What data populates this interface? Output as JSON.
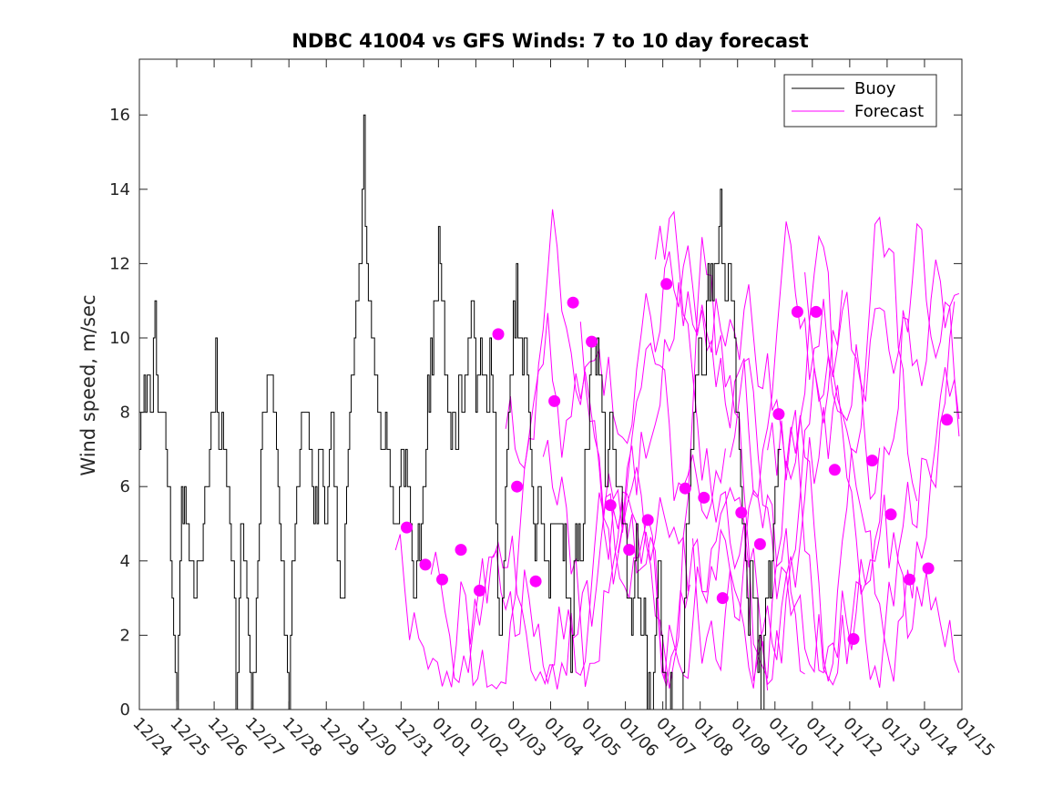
{
  "chart_data": {
    "type": "line",
    "title": "NDBC 41004 vs GFS Winds: 7 to 10 day forecast",
    "xlabel": "",
    "ylabel": "Wind speed, m/sec",
    "x_tick_labels": [
      "12/24",
      "12/25",
      "12/26",
      "12/27",
      "12/28",
      "12/29",
      "12/30",
      "12/31",
      "01/01",
      "01/02",
      "01/03",
      "01/04",
      "01/05",
      "01/06",
      "01/07",
      "01/08",
      "01/09",
      "01/10",
      "01/11",
      "01/12",
      "01/13",
      "01/14",
      "01/15"
    ],
    "xlim_days": [
      0,
      22
    ],
    "ylim": [
      0,
      17.5
    ],
    "y_ticks": [
      0,
      2,
      4,
      6,
      8,
      10,
      12,
      14,
      16
    ],
    "legend": [
      "Buoy",
      "Forecast"
    ],
    "legend_position": "top-right",
    "colors": {
      "buoy": "#000000",
      "forecast": "#ff00ff",
      "axis": "#262626"
    },
    "buoy_keypoints": [
      [
        0.0,
        7
      ],
      [
        0.1,
        8
      ],
      [
        0.2,
        9
      ],
      [
        0.35,
        9
      ],
      [
        0.42,
        10
      ],
      [
        0.5,
        8
      ],
      [
        0.65,
        8
      ],
      [
        0.7,
        7
      ],
      [
        0.8,
        5
      ],
      [
        0.9,
        3
      ],
      [
        0.95,
        1
      ],
      [
        1.0,
        0
      ],
      [
        1.05,
        3
      ],
      [
        1.1,
        5
      ],
      [
        1.2,
        6
      ],
      [
        1.3,
        5
      ],
      [
        1.4,
        4
      ],
      [
        1.5,
        3
      ],
      [
        1.6,
        4
      ],
      [
        1.7,
        5
      ],
      [
        1.8,
        6
      ],
      [
        1.95,
        8
      ],
      [
        2.05,
        9
      ],
      [
        2.15,
        7
      ],
      [
        2.3,
        7
      ],
      [
        2.4,
        6
      ],
      [
        2.5,
        4
      ],
      [
        2.55,
        2
      ],
      [
        2.6,
        0
      ],
      [
        2.7,
        4
      ],
      [
        2.75,
        5
      ],
      [
        2.85,
        3
      ],
      [
        2.95,
        1
      ],
      [
        3.0,
        0
      ],
      [
        3.1,
        2
      ],
      [
        3.2,
        5
      ],
      [
        3.3,
        8
      ],
      [
        3.4,
        9
      ],
      [
        3.55,
        9
      ],
      [
        3.65,
        7
      ],
      [
        3.8,
        4
      ],
      [
        3.9,
        2
      ],
      [
        4.0,
        0
      ],
      [
        4.05,
        3
      ],
      [
        4.15,
        5
      ],
      [
        4.2,
        6
      ],
      [
        4.3,
        7
      ],
      [
        4.4,
        8
      ],
      [
        4.5,
        8
      ],
      [
        4.6,
        6
      ],
      [
        4.7,
        5
      ],
      [
        4.8,
        7
      ],
      [
        4.9,
        6
      ],
      [
        5.0,
        5
      ],
      [
        5.05,
        6
      ],
      [
        5.15,
        8
      ],
      [
        5.2,
        7
      ],
      [
        5.3,
        4
      ],
      [
        5.4,
        3
      ],
      [
        5.45,
        2
      ],
      [
        5.5,
        5
      ],
      [
        5.6,
        8
      ],
      [
        5.7,
        10
      ],
      [
        5.8,
        11
      ],
      [
        5.9,
        12
      ],
      [
        5.95,
        13
      ],
      [
        6.0,
        16
      ],
      [
        6.05,
        12
      ],
      [
        6.1,
        12
      ],
      [
        6.15,
        11
      ],
      [
        6.25,
        10
      ],
      [
        6.35,
        9
      ],
      [
        6.45,
        7
      ],
      [
        6.55,
        8
      ],
      [
        6.65,
        7
      ],
      [
        6.75,
        6
      ],
      [
        6.85,
        5
      ],
      [
        6.95,
        6
      ],
      [
        7.05,
        7
      ],
      [
        7.15,
        6
      ],
      [
        7.25,
        5
      ],
      [
        7.3,
        4
      ],
      [
        7.4,
        3
      ],
      [
        7.5,
        5
      ],
      [
        7.6,
        6
      ],
      [
        7.7,
        8
      ],
      [
        7.8,
        9
      ],
      [
        7.9,
        11
      ],
      [
        8.0,
        12
      ],
      [
        8.05,
        13
      ],
      [
        8.1,
        11
      ],
      [
        8.2,
        9
      ],
      [
        8.3,
        8
      ],
      [
        8.4,
        7
      ],
      [
        8.5,
        8
      ],
      [
        8.6,
        9
      ],
      [
        8.7,
        8
      ],
      [
        8.8,
        10
      ],
      [
        8.9,
        11
      ],
      [
        9.0,
        9
      ],
      [
        9.1,
        10
      ],
      [
        9.2,
        9
      ],
      [
        9.3,
        8
      ],
      [
        9.4,
        10
      ],
      [
        9.5,
        7
      ],
      [
        9.6,
        2
      ],
      [
        9.65,
        1
      ],
      [
        9.7,
        3
      ],
      [
        9.8,
        6
      ],
      [
        9.9,
        8
      ],
      [
        10.0,
        10
      ],
      [
        10.1,
        11
      ],
      [
        10.2,
        9
      ],
      [
        10.3,
        10
      ],
      [
        10.4,
        8
      ],
      [
        10.5,
        6
      ],
      [
        10.6,
        4
      ],
      [
        10.7,
        6
      ],
      [
        10.8,
        5
      ],
      [
        10.9,
        3
      ],
      [
        11.0,
        4
      ],
      [
        11.1,
        5
      ],
      [
        11.2,
        6
      ],
      [
        11.3,
        5
      ],
      [
        11.4,
        4
      ],
      [
        11.5,
        2
      ],
      [
        11.55,
        1
      ],
      [
        11.6,
        3
      ],
      [
        11.7,
        5
      ],
      [
        11.8,
        4
      ],
      [
        11.9,
        6
      ],
      [
        12.0,
        8
      ],
      [
        12.1,
        10
      ],
      [
        12.2,
        9
      ],
      [
        12.3,
        10
      ],
      [
        12.4,
        8
      ],
      [
        12.5,
        6
      ],
      [
        12.55,
        7
      ],
      [
        12.6,
        8
      ],
      [
        12.7,
        7
      ],
      [
        12.8,
        6
      ],
      [
        12.9,
        5
      ],
      [
        13.0,
        4
      ],
      [
        13.1,
        3
      ],
      [
        13.15,
        2
      ],
      [
        13.2,
        3
      ],
      [
        13.3,
        4
      ],
      [
        13.4,
        3
      ],
      [
        13.45,
        2
      ],
      [
        13.5,
        4
      ],
      [
        13.55,
        2
      ],
      [
        13.6,
        0
      ],
      [
        13.7,
        0
      ],
      [
        13.8,
        2
      ],
      [
        13.9,
        4
      ],
      [
        14.0,
        1
      ],
      [
        14.1,
        0
      ],
      [
        14.2,
        0
      ],
      [
        14.5,
        0
      ],
      [
        14.55,
        2
      ],
      [
        14.6,
        4
      ],
      [
        14.7,
        6
      ],
      [
        14.8,
        8
      ],
      [
        14.9,
        9
      ],
      [
        15.0,
        10
      ],
      [
        15.1,
        9
      ],
      [
        15.2,
        11
      ],
      [
        15.3,
        12
      ],
      [
        15.4,
        11
      ],
      [
        15.5,
        13
      ],
      [
        15.55,
        14
      ],
      [
        15.6,
        12
      ],
      [
        15.7,
        11
      ],
      [
        15.8,
        12
      ],
      [
        15.9,
        10
      ],
      [
        16.0,
        8
      ],
      [
        16.1,
        6
      ],
      [
        16.2,
        4
      ],
      [
        16.3,
        3
      ],
      [
        16.4,
        4
      ],
      [
        16.5,
        2
      ],
      [
        16.6,
        1
      ],
      [
        16.65,
        0
      ],
      [
        16.7,
        2
      ],
      [
        16.8,
        3
      ],
      [
        16.9,
        4
      ],
      [
        17.0,
        6
      ],
      [
        17.1,
        7
      ],
      [
        17.15,
        8
      ],
      [
        17.2,
        7
      ]
    ],
    "forecast_dots": [
      [
        7.15,
        4.9
      ],
      [
        7.65,
        3.9
      ],
      [
        8.1,
        3.5
      ],
      [
        8.6,
        4.3
      ],
      [
        9.1,
        3.2
      ],
      [
        9.6,
        10.1
      ],
      [
        10.1,
        6.0
      ],
      [
        10.6,
        3.45
      ],
      [
        11.1,
        8.3
      ],
      [
        11.6,
        10.95
      ],
      [
        12.1,
        9.9
      ],
      [
        12.6,
        5.5
      ],
      [
        13.1,
        4.3
      ],
      [
        13.6,
        5.1
      ],
      [
        14.1,
        11.45
      ],
      [
        14.6,
        5.95
      ],
      [
        15.1,
        5.7
      ],
      [
        15.6,
        3.0
      ],
      [
        16.1,
        5.3
      ],
      [
        16.6,
        4.45
      ],
      [
        17.1,
        7.95
      ],
      [
        17.6,
        10.7
      ],
      [
        18.1,
        10.7
      ],
      [
        18.6,
        6.45
      ],
      [
        19.1,
        1.9
      ],
      [
        19.6,
        6.7
      ],
      [
        20.1,
        5.25
      ],
      [
        20.6,
        3.5
      ],
      [
        21.1,
        3.8
      ],
      [
        21.6,
        7.8
      ]
    ],
    "forecast_line_seeds": [
      11,
      23,
      37,
      41,
      53,
      67,
      71,
      83,
      97,
      101,
      113,
      127
    ]
  }
}
